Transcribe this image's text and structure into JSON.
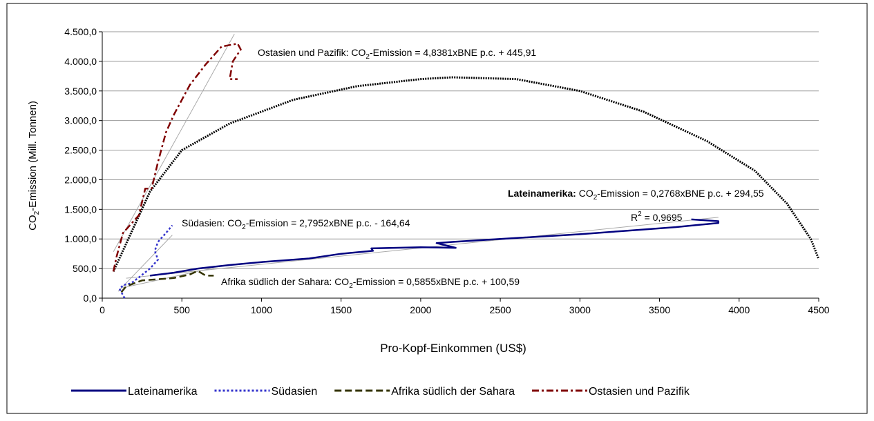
{
  "chart_data": {
    "type": "line",
    "xlabel": {
      "pre": "Pro-Kopf-Einkommen (US$)"
    },
    "ylabel": {
      "pre": "CO",
      "sub": "2",
      "post": "-Emission (Mill. Tonnen)"
    },
    "xlim": [
      0,
      4500
    ],
    "ylim": [
      0,
      4500
    ],
    "xticks": [
      0,
      500,
      1000,
      1500,
      2000,
      2500,
      3000,
      3500,
      4000,
      4500
    ],
    "yticks": [
      {
        "value": 0,
        "label": "0,0"
      },
      {
        "value": 500,
        "label": "500,0"
      },
      {
        "value": 1000,
        "label": "1.000,0"
      },
      {
        "value": 1500,
        "label": "1.500,0"
      },
      {
        "value": 2000,
        "label": "2.000,0"
      },
      {
        "value": 2500,
        "label": "2.500,0"
      },
      {
        "value": 3000,
        "label": "3.000,0"
      },
      {
        "value": 3500,
        "label": "3.500,0"
      },
      {
        "value": 4000,
        "label": "4.000,0"
      },
      {
        "value": 4500,
        "label": "4.500,0"
      }
    ],
    "grid": true,
    "legend": "bottom",
    "series": [
      {
        "name": "Lateinamerika",
        "color": "#000080",
        "style": "solid",
        "x": [
          300,
          450,
          600,
          800,
          1000,
          1300,
          1500,
          1700,
          1690,
          2000,
          2220,
          2100,
          2200,
          2500,
          3000,
          3300,
          3600,
          3870,
          3870,
          3700
        ],
        "values": [
          380,
          430,
          500,
          560,
          610,
          670,
          750,
          800,
          840,
          860,
          850,
          930,
          950,
          1000,
          1080,
          1140,
          1200,
          1270,
          1300,
          1330
        ]
      },
      {
        "name": "Südasien",
        "color": "#3333cc",
        "style": "dot",
        "x": [
          140,
          110,
          130,
          180,
          230,
          300,
          350,
          330,
          350,
          400,
          440
        ],
        "values": [
          0,
          150,
          220,
          250,
          350,
          500,
          650,
          800,
          950,
          1100,
          1230
        ]
      },
      {
        "name": "Afrika südlich der Sahara",
        "color": "#333300",
        "style": "dash",
        "x": [
          120,
          150,
          250,
          350,
          450,
          550,
          600,
          650,
          700
        ],
        "values": [
          100,
          200,
          300,
          320,
          340,
          400,
          460,
          380,
          380
        ]
      },
      {
        "name": "Ostasien und Pazifik",
        "color": "#800000",
        "style": "dashdot",
        "x": [
          70,
          90,
          130,
          180,
          230,
          270,
          310,
          350,
          400,
          450,
          550,
          650,
          750,
          850,
          870,
          820,
          800,
          850
        ],
        "values": [
          450,
          700,
          1100,
          1250,
          1400,
          1850,
          1850,
          2300,
          2800,
          3100,
          3600,
          3950,
          4250,
          4300,
          4200,
          4000,
          3700,
          3700
        ]
      }
    ],
    "curve": {
      "color": "#000000",
      "x": [
        70,
        300,
        500,
        800,
        1200,
        1600,
        2000,
        2200,
        2600,
        3000,
        3400,
        3800,
        4100,
        4300,
        4450,
        4500
      ],
      "values": [
        450,
        1800,
        2500,
        2950,
        3350,
        3580,
        3700,
        3730,
        3700,
        3500,
        3150,
        2650,
        2150,
        1600,
        1000,
        660
      ]
    },
    "trendlines": [
      {
        "slope": 0.2768,
        "intercept": 294.55,
        "xlim": [
          150,
          3870
        ]
      },
      {
        "slope": 2.7952,
        "intercept": -164.64,
        "xlim": [
          100,
          440
        ]
      },
      {
        "slope": 0.5855,
        "intercept": 100.59,
        "xlim": [
          120,
          700
        ]
      },
      {
        "slope": 4.8381,
        "intercept": 445.91,
        "xlim": [
          70,
          830
        ]
      }
    ],
    "annotations": [
      {
        "bold": "Lateinamerika:",
        "pre": " CO",
        "sub": "2",
        "post": "-Emission = 0,2768xBNE p.c. + 294,55"
      },
      {
        "pre": "R",
        "sup": "2",
        "post": " = 0,9695"
      },
      {
        "pre": "Südasien: CO",
        "sub": "2",
        "post": "-Emission = 2,7952xBNE p.c. - 164,64"
      },
      {
        "pre": "Afrika südlich der Sahara: CO",
        "sub": "2",
        "post": "-Emission = 0,5855xBNE p.c. + 100,59"
      },
      {
        "pre": "Ostasien und Pazifik: CO",
        "sub": "2",
        "post": "-Emission = 4,8381xBNE p.c. + 445,91"
      }
    ]
  }
}
